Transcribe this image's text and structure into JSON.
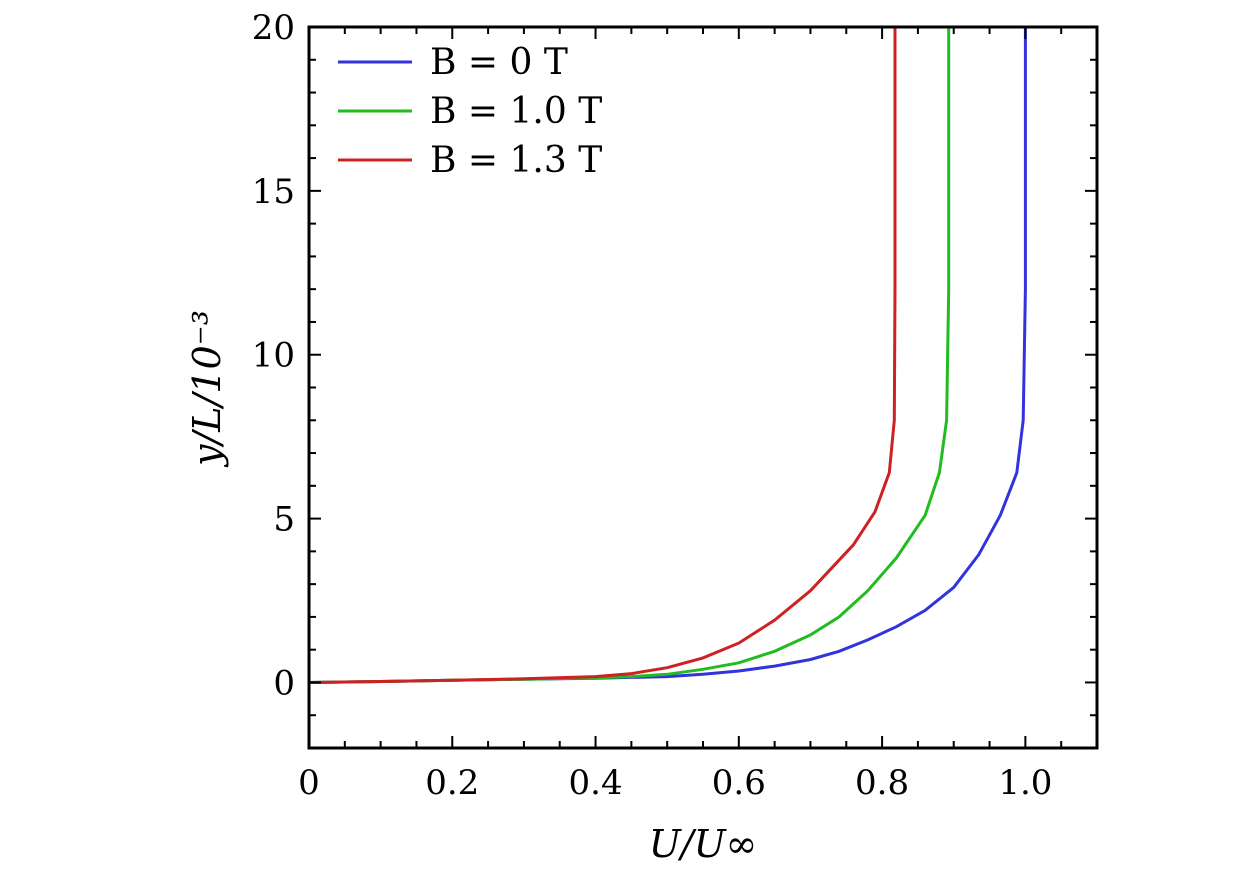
{
  "chart_data": {
    "type": "line",
    "xlabel": "U/U∞",
    "ylabel": "y/L/10⁻³",
    "xlim": [
      0,
      1.1
    ],
    "ylim": [
      -2,
      20
    ],
    "xticks": [
      "0",
      "0.2",
      "0.4",
      "0.6",
      "0.8",
      "1.0"
    ],
    "yticks": [
      "0",
      "5",
      "10",
      "15",
      "20"
    ],
    "grid": false,
    "legend_position": "top-left",
    "series": [
      {
        "name": "B = 0 T",
        "color": "#3333dd",
        "x": [
          0,
          0.1,
          0.2,
          0.3,
          0.4,
          0.5,
          0.55,
          0.6,
          0.65,
          0.7,
          0.74,
          0.78,
          0.82,
          0.86,
          0.9,
          0.935,
          0.965,
          0.988,
          0.997,
          1.0,
          1.0
        ],
        "y": [
          0,
          0.03,
          0.07,
          0.1,
          0.13,
          0.18,
          0.25,
          0.35,
          0.5,
          0.7,
          0.95,
          1.3,
          1.7,
          2.2,
          2.9,
          3.9,
          5.1,
          6.4,
          8.0,
          12.0,
          20.0
        ]
      },
      {
        "name": "B = 1.0 T",
        "color": "#22bb22",
        "x": [
          0,
          0.1,
          0.2,
          0.3,
          0.4,
          0.45,
          0.5,
          0.55,
          0.6,
          0.65,
          0.7,
          0.74,
          0.78,
          0.82,
          0.86,
          0.88,
          0.89,
          0.893,
          0.893
        ],
        "y": [
          0,
          0.03,
          0.07,
          0.1,
          0.14,
          0.18,
          0.25,
          0.4,
          0.6,
          0.95,
          1.45,
          2.0,
          2.8,
          3.8,
          5.1,
          6.4,
          8.0,
          12.0,
          20.0
        ]
      },
      {
        "name": "B = 1.3 T",
        "color": "#cc2222",
        "x": [
          0,
          0.1,
          0.2,
          0.3,
          0.4,
          0.45,
          0.5,
          0.55,
          0.6,
          0.65,
          0.7,
          0.73,
          0.76,
          0.79,
          0.81,
          0.817,
          0.818,
          0.818
        ],
        "y": [
          0,
          0.03,
          0.07,
          0.11,
          0.18,
          0.27,
          0.45,
          0.75,
          1.2,
          1.9,
          2.8,
          3.5,
          4.2,
          5.2,
          6.4,
          8.0,
          12.0,
          20.0
        ]
      }
    ]
  }
}
